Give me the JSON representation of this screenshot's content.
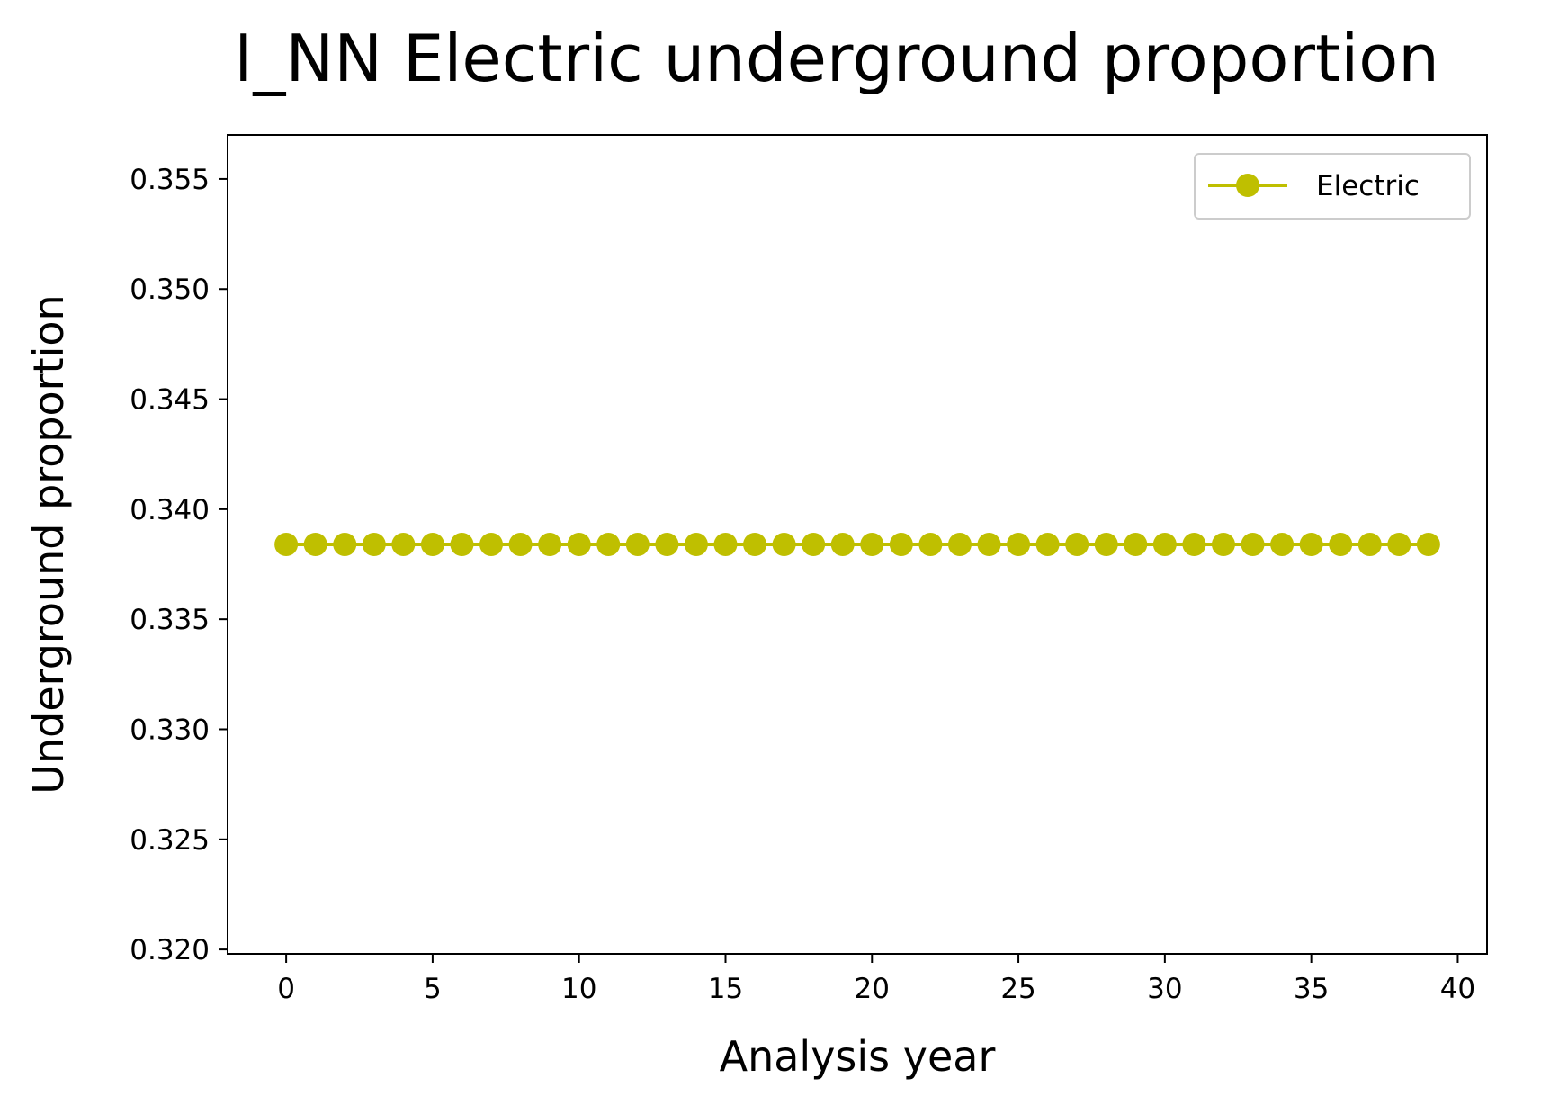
{
  "chart_data": {
    "type": "line",
    "title": "I_NN Electric underground proportion",
    "xlabel": "Analysis year",
    "ylabel": "Underground proportion",
    "xlim": [
      -2,
      41
    ],
    "ylim": [
      0.3198,
      0.357
    ],
    "xticks": [
      0,
      5,
      10,
      15,
      20,
      25,
      30,
      35,
      40
    ],
    "xtick_labels": [
      "0",
      "5",
      "10",
      "15",
      "20",
      "25",
      "30",
      "35",
      "40"
    ],
    "yticks": [
      0.32,
      0.325,
      0.33,
      0.335,
      0.34,
      0.345,
      0.35,
      0.355
    ],
    "ytick_labels": [
      "0.320",
      "0.325",
      "0.330",
      "0.335",
      "0.340",
      "0.345",
      "0.350",
      "0.355"
    ],
    "grid": false,
    "legend_position": "top-right",
    "series": [
      {
        "name": "Electric",
        "color": "#bfbf00",
        "marker": "circle",
        "x": [
          0,
          1,
          2,
          3,
          4,
          5,
          6,
          7,
          8,
          9,
          10,
          11,
          12,
          13,
          14,
          15,
          16,
          17,
          18,
          19,
          20,
          21,
          22,
          23,
          24,
          25,
          26,
          27,
          28,
          29,
          30,
          31,
          32,
          33,
          34,
          35,
          36,
          37,
          38,
          39
        ],
        "values": [
          0.3384,
          0.3384,
          0.3384,
          0.3384,
          0.3384,
          0.3384,
          0.3384,
          0.3384,
          0.3384,
          0.3384,
          0.3384,
          0.3384,
          0.3384,
          0.3384,
          0.3384,
          0.3384,
          0.3384,
          0.3384,
          0.3384,
          0.3384,
          0.3384,
          0.3384,
          0.3384,
          0.3384,
          0.3384,
          0.3384,
          0.3384,
          0.3384,
          0.3384,
          0.3384,
          0.3384,
          0.3384,
          0.3384,
          0.3384,
          0.3384,
          0.3384,
          0.3384,
          0.3384,
          0.3384,
          0.3384
        ]
      }
    ]
  }
}
